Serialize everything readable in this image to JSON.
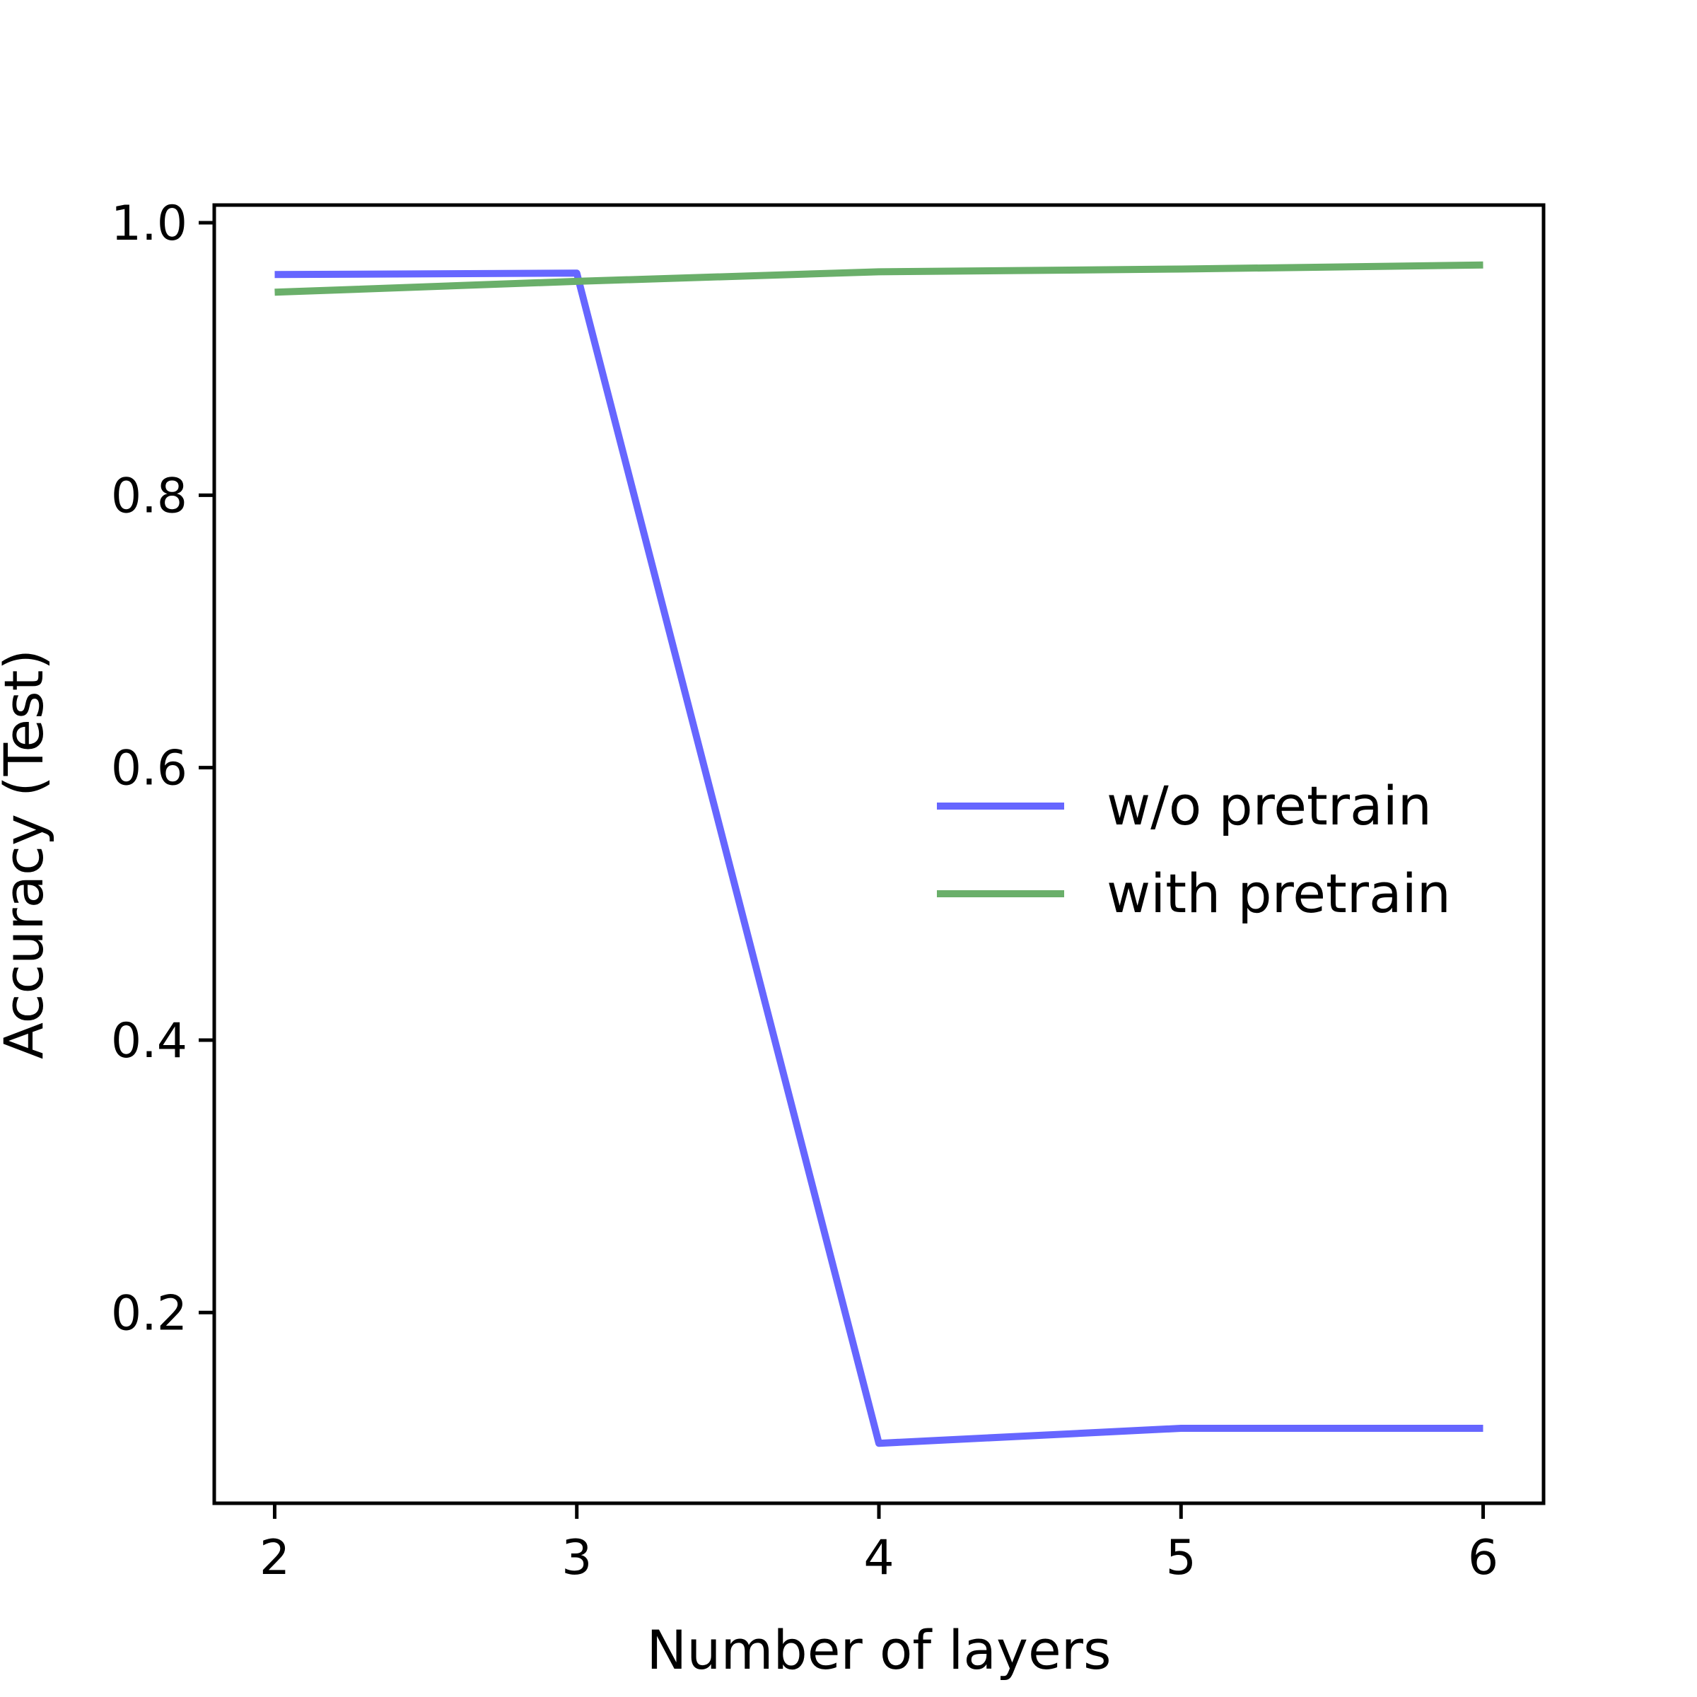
{
  "chart_data": {
    "type": "line",
    "title": "",
    "xlabel": "Number of layers",
    "ylabel": "Accuracy (Test)",
    "x": [
      2,
      3,
      4,
      5,
      6
    ],
    "xticks": [
      "2",
      "3",
      "4",
      "5",
      "6"
    ],
    "yticks": [
      "0.2",
      "0.4",
      "0.6",
      "0.8",
      "1.0"
    ],
    "xlim": [
      1.8,
      6.2
    ],
    "ylim": [
      0.06,
      1.013
    ],
    "grid": false,
    "legend_position": "center-right",
    "series": [
      {
        "name": "w/o pretrain",
        "color": "#6666ff",
        "values": [
          0.962,
          0.963,
          0.104,
          0.115,
          0.115
        ]
      },
      {
        "name": "with pretrain",
        "color": "#6aaf6a",
        "values": [
          0.949,
          0.957,
          0.964,
          0.966,
          0.969
        ]
      }
    ]
  }
}
